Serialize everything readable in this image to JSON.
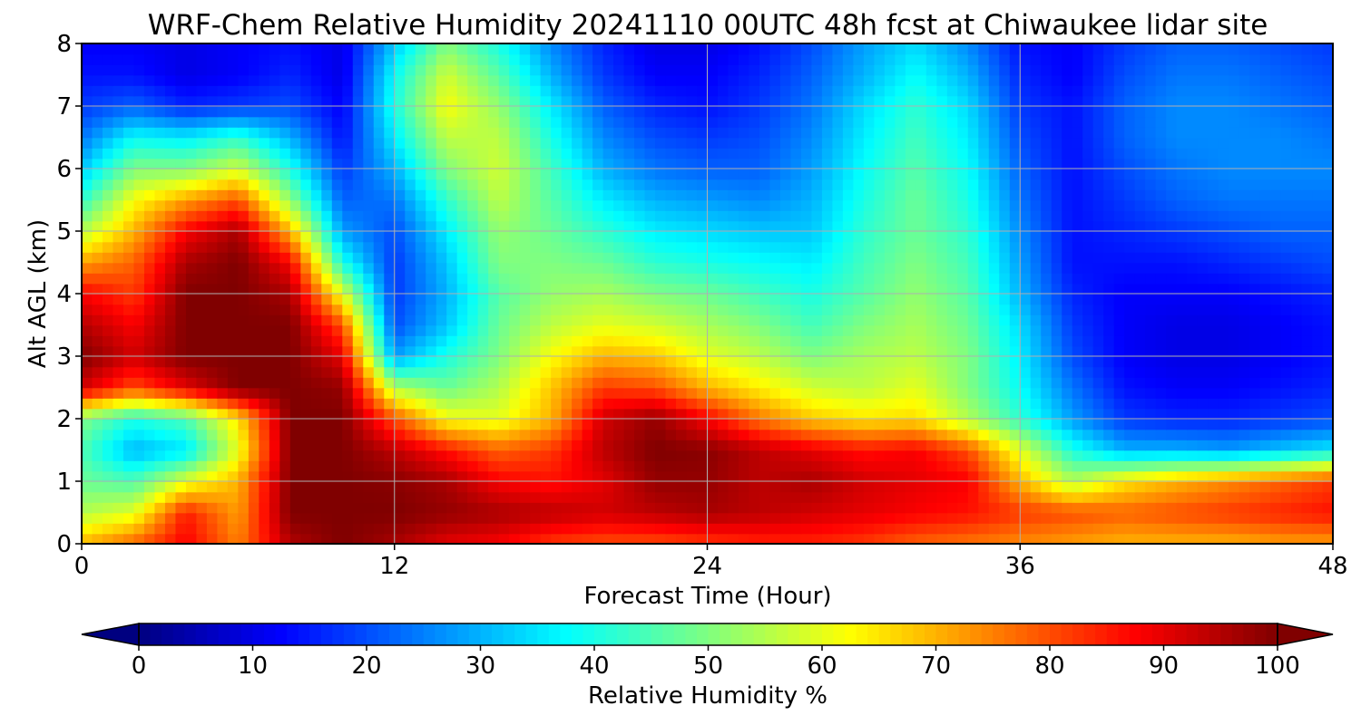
{
  "chart_data": {
    "type": "heatmap",
    "title": "WRF-Chem Relative Humidity 20241110 00UTC 48h fcst at Chiwaukee lidar site",
    "xlabel": "Forecast Time (Hour)",
    "ylabel": "Alt AGL (km)",
    "xlim": [
      0,
      48
    ],
    "ylim": [
      0,
      8
    ],
    "xticks": [
      "0",
      "12",
      "24",
      "36",
      "48"
    ],
    "yticks": [
      "0",
      "1",
      "2",
      "3",
      "4",
      "5",
      "6",
      "7",
      "8"
    ],
    "grid": true,
    "colormap": "jet",
    "colorbar": {
      "label": "Relative Humidity %",
      "range": [
        0,
        100
      ],
      "ticks": [
        "0",
        "10",
        "20",
        "30",
        "40",
        "50",
        "60",
        "70",
        "80",
        "90",
        "100"
      ],
      "extend": "both",
      "placement": "bottom"
    },
    "x_hours": [
      0,
      2,
      4,
      6,
      8,
      10,
      12,
      14,
      16,
      18,
      20,
      22,
      24,
      26,
      28,
      30,
      32,
      34,
      36,
      38,
      40,
      42,
      44,
      46,
      48
    ],
    "y_km": [
      0,
      0.5,
      1,
      1.5,
      2,
      2.5,
      3,
      3.5,
      4,
      4.5,
      5,
      5.5,
      6,
      6.5,
      7,
      7.5,
      8
    ],
    "rh": [
      [
        70,
        78,
        88,
        75,
        95,
        100,
        96,
        90,
        88,
        82,
        80,
        80,
        82,
        84,
        84,
        82,
        78,
        76,
        74,
        72,
        70,
        70,
        70,
        72,
        72
      ],
      [
        55,
        60,
        85,
        72,
        100,
        100,
        100,
        98,
        96,
        94,
        92,
        94,
        96,
        94,
        92,
        90,
        88,
        86,
        82,
        80,
        78,
        80,
        82,
        84,
        86
      ],
      [
        48,
        45,
        60,
        70,
        100,
        100,
        99,
        96,
        88,
        86,
        90,
        98,
        98,
        94,
        96,
        92,
        90,
        88,
        70,
        55,
        65,
        70,
        74,
        78,
        82
      ],
      [
        45,
        30,
        35,
        60,
        100,
        100,
        94,
        86,
        78,
        82,
        94,
        100,
        99,
        94,
        90,
        86,
        88,
        80,
        60,
        40,
        30,
        30,
        28,
        32,
        36
      ],
      [
        50,
        40,
        45,
        65,
        100,
        100,
        80,
        62,
        60,
        70,
        92,
        98,
        88,
        76,
        68,
        65,
        66,
        55,
        42,
        28,
        18,
        16,
        16,
        18,
        20
      ],
      [
        92,
        80,
        90,
        100,
        100,
        98,
        55,
        48,
        55,
        68,
        82,
        80,
        70,
        64,
        58,
        56,
        60,
        50,
        38,
        24,
        14,
        12,
        12,
        14,
        16
      ],
      [
        100,
        92,
        100,
        100,
        100,
        90,
        28,
        40,
        50,
        62,
        70,
        68,
        60,
        56,
        50,
        54,
        56,
        50,
        36,
        20,
        12,
        10,
        10,
        12,
        14
      ],
      [
        95,
        88,
        100,
        100,
        100,
        80,
        20,
        32,
        48,
        56,
        60,
        58,
        54,
        50,
        44,
        50,
        54,
        48,
        34,
        18,
        12,
        10,
        10,
        12,
        14
      ],
      [
        88,
        82,
        100,
        100,
        96,
        60,
        18,
        30,
        46,
        52,
        54,
        50,
        48,
        44,
        40,
        46,
        52,
        46,
        30,
        16,
        12,
        12,
        12,
        14,
        16
      ],
      [
        72,
        78,
        96,
        100,
        88,
        40,
        18,
        32,
        50,
        50,
        48,
        42,
        40,
        38,
        36,
        44,
        50,
        44,
        28,
        14,
        14,
        14,
        16,
        18,
        20
      ],
      [
        55,
        70,
        88,
        96,
        70,
        28,
        20,
        36,
        52,
        48,
        42,
        36,
        34,
        32,
        32,
        42,
        48,
        42,
        26,
        14,
        16,
        18,
        20,
        22,
        22
      ],
      [
        42,
        62,
        72,
        80,
        52,
        22,
        24,
        42,
        56,
        46,
        36,
        30,
        28,
        26,
        30,
        40,
        48,
        40,
        24,
        14,
        18,
        22,
        24,
        24,
        24
      ],
      [
        32,
        50,
        50,
        58,
        40,
        18,
        30,
        50,
        58,
        44,
        30,
        24,
        22,
        22,
        28,
        38,
        46,
        38,
        22,
        14,
        20,
        24,
        26,
        26,
        26
      ],
      [
        24,
        38,
        36,
        42,
        30,
        14,
        36,
        56,
        56,
        40,
        26,
        20,
        18,
        20,
        26,
        36,
        44,
        36,
        20,
        14,
        22,
        26,
        26,
        26,
        24
      ],
      [
        18,
        22,
        16,
        18,
        20,
        12,
        40,
        62,
        52,
        36,
        22,
        16,
        14,
        18,
        24,
        34,
        42,
        34,
        18,
        14,
        22,
        26,
        26,
        24,
        22
      ],
      [
        14,
        14,
        10,
        12,
        16,
        10,
        38,
        58,
        46,
        30,
        18,
        12,
        12,
        16,
        22,
        30,
        38,
        30,
        16,
        12,
        20,
        24,
        24,
        22,
        20
      ],
      [
        12,
        12,
        10,
        12,
        14,
        10,
        32,
        50,
        40,
        26,
        16,
        10,
        10,
        14,
        20,
        28,
        34,
        26,
        14,
        12,
        18,
        22,
        22,
        20,
        18
      ]
    ]
  }
}
